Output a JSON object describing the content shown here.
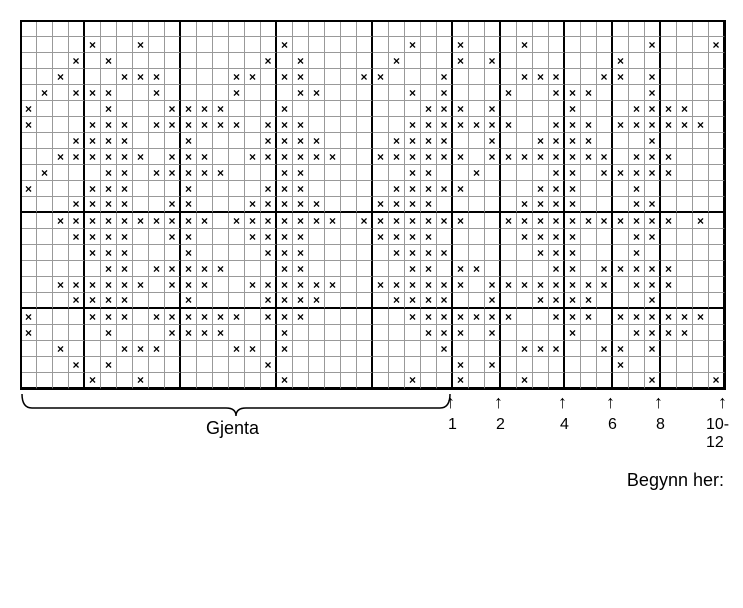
{
  "chart": {
    "type": "grid-knitting-chart",
    "rows": 23,
    "cols": 44,
    "cell_size": 16,
    "background_color": "#ffffff",
    "grid_color": "#999999",
    "thick_color": "#000000",
    "stitch_symbol": "×",
    "thick_verticals_after_cols": [
      4,
      10,
      16,
      22,
      27,
      30,
      34,
      37,
      40
    ],
    "thick_horizontals_after_rows": [
      12,
      18
    ],
    "stitches": [
      "00000000000000000000000000000000000000000000",
      "00001001000000001000000010010001000000010001",
      "00010100000000010100000100010100000001000000",
      "00100011100001101100011000100001110011010000",
      "01011100100001000110000010100010011100010000",
      "10000100011110001000000001110100001000111100",
      "10001110111111011100000011111110011101111110",
      "00011110001000011110000111100100111100010000",
      "00111111011100111111001111110111111110111000",
      "01000110111110001100000011001000011011111000",
      "10001110001000011100000111110000111000100000",
      "00011110011000111110001111000001111000110000",
      "00111111111101111111011111110011111111111010",
      "00011110011000111100001111000001111000110000",
      "00001110001000011100000111100000111000100000",
      "00000110111110001100000011011000011011111000",
      "00111111011100111111001111110111111110111000",
      "00011110001000011110000111100100111100010000",
      "10001110111111011100000011111110011101111110",
      "10000100011110001000000001110100001000111100",
      "00100011100001101000000000100001110011010000",
      "00010100000000010000000000010100000001000000",
      "00001001000000001000000010010001000000010001"
    ]
  },
  "labels": {
    "repeat": "Gjenta",
    "begin": "Begynn her:",
    "size_markers": [
      {
        "col": 27,
        "label": "1"
      },
      {
        "col": 30,
        "label": "2"
      },
      {
        "col": 34,
        "label": "4"
      },
      {
        "col": 37,
        "label": "6"
      },
      {
        "col": 40,
        "label": "8"
      },
      {
        "col": 44,
        "label": "10-12"
      }
    ],
    "brace_start_col": 0,
    "brace_end_col": 27
  },
  "style": {
    "font_family": "Arial, Helvetica, sans-serif",
    "label_fontsize": 16,
    "caption_fontsize": 18
  }
}
